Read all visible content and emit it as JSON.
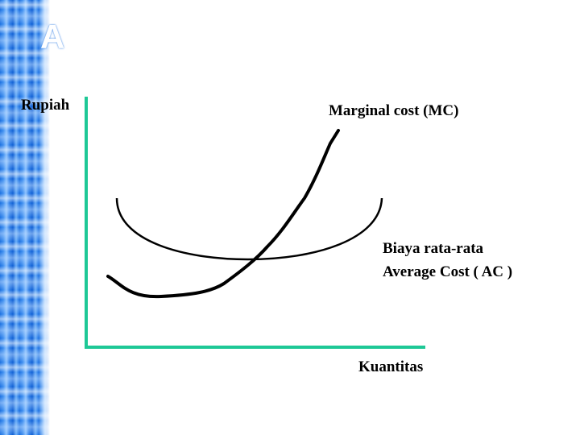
{
  "slide": {
    "title_fragment": "A",
    "band_color": "#2f7fe8"
  },
  "diagram": {
    "y_axis_label": "Rupiah",
    "x_axis_label": "Kuantitas",
    "mc_label": "Marginal cost (MC)",
    "ac_label_line1": "Biaya rata-rata",
    "ac_label_line2": "Average Cost ( AC )",
    "axis_color": "#1ec896",
    "curve_color": "#000000"
  }
}
